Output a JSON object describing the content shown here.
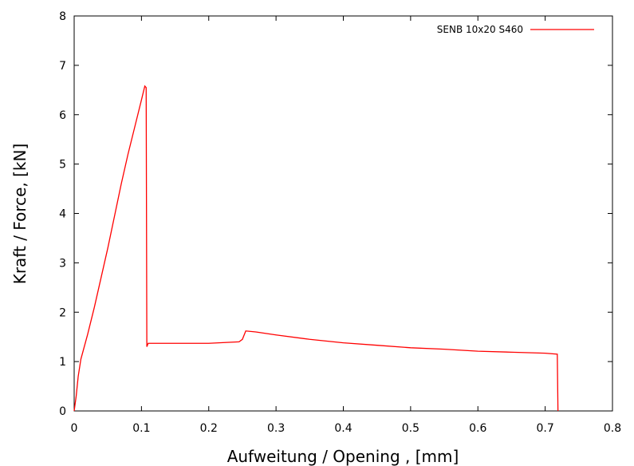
{
  "chart_data": {
    "type": "line",
    "xlabel": "Aufweitung / Opening , [mm]",
    "ylabel": "Kraft / Force, [kN]",
    "xlim": [
      0,
      0.8
    ],
    "ylim": [
      0,
      8
    ],
    "xticks": [
      "0",
      "0.1",
      "0.2",
      "0.3",
      "0.4",
      "0.5",
      "0.6",
      "0.7",
      "0.8"
    ],
    "yticks": [
      "0",
      "1",
      "2",
      "3",
      "4",
      "5",
      "6",
      "7",
      "8"
    ],
    "grid": false,
    "legend_position": "top-right",
    "series": [
      {
        "name": "SENB 10x20 S460",
        "color": "#ff0000",
        "points": [
          [
            0.0,
            0.0
          ],
          [
            0.003,
            0.3
          ],
          [
            0.006,
            0.7
          ],
          [
            0.01,
            1.05
          ],
          [
            0.02,
            1.55
          ],
          [
            0.03,
            2.1
          ],
          [
            0.04,
            2.7
          ],
          [
            0.05,
            3.3
          ],
          [
            0.06,
            3.95
          ],
          [
            0.07,
            4.6
          ],
          [
            0.08,
            5.2
          ],
          [
            0.09,
            5.75
          ],
          [
            0.1,
            6.3
          ],
          [
            0.105,
            6.58
          ],
          [
            0.107,
            6.55
          ],
          [
            0.108,
            1.3
          ],
          [
            0.11,
            1.37
          ],
          [
            0.15,
            1.37
          ],
          [
            0.2,
            1.37
          ],
          [
            0.245,
            1.4
          ],
          [
            0.25,
            1.45
          ],
          [
            0.255,
            1.62
          ],
          [
            0.27,
            1.6
          ],
          [
            0.3,
            1.54
          ],
          [
            0.35,
            1.45
          ],
          [
            0.4,
            1.38
          ],
          [
            0.45,
            1.33
          ],
          [
            0.5,
            1.28
          ],
          [
            0.55,
            1.25
          ],
          [
            0.6,
            1.21
          ],
          [
            0.65,
            1.19
          ],
          [
            0.7,
            1.17
          ],
          [
            0.718,
            1.15
          ],
          [
            0.719,
            0.0
          ]
        ]
      }
    ]
  }
}
